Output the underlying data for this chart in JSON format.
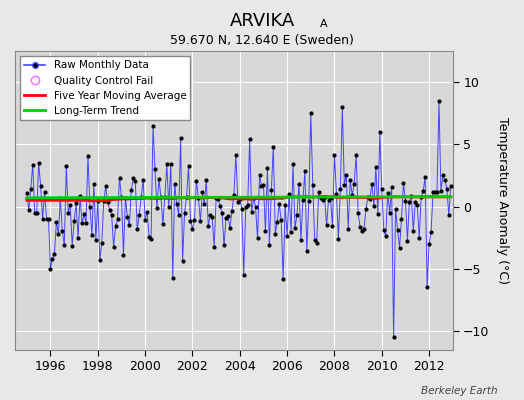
{
  "title": "ARVIKA",
  "title_sub": "A",
  "subtitle": "59.670 N, 12.640 E (Sweden)",
  "ylabel": "Temperature Anomaly (°C)",
  "footer": "Berkeley Earth",
  "xlim": [
    1994.5,
    2013.0
  ],
  "ylim": [
    -11.5,
    12.5
  ],
  "yticks": [
    -10,
    -5,
    0,
    5,
    10
  ],
  "xticks": [
    1996,
    1998,
    2000,
    2002,
    2004,
    2006,
    2008,
    2010,
    2012
  ],
  "background_color": "#e8e8e8",
  "plot_bg_color": "#d8d8d8",
  "grid_color": "#ffffff",
  "line_color": "#4444ff",
  "dot_color": "#000000",
  "ma_color": "#ff0000",
  "trend_color": "#00cc00",
  "trend_value": 0.7,
  "seed": 42,
  "n_months": 216,
  "start_year": 1995.0
}
